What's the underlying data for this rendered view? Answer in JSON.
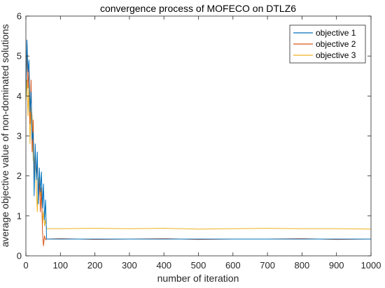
{
  "chart_data": {
    "type": "line",
    "title": "convergence process of MOFECO on DTLZ6",
    "xlabel": "number of iteration",
    "ylabel": "average objective value of non-dominated solutions",
    "xlim": [
      0,
      1000
    ],
    "ylim": [
      0,
      6
    ],
    "xticks": [
      0,
      100,
      200,
      300,
      400,
      500,
      600,
      700,
      800,
      900,
      1000
    ],
    "yticks": [
      0,
      1,
      2,
      3,
      4,
      5,
      6
    ],
    "grid": false,
    "legend_position": "top-right",
    "series": [
      {
        "name": "objective 1",
        "color": "#0072BD",
        "x": [
          0,
          3,
          6,
          9,
          12,
          15,
          18,
          21,
          24,
          27,
          30,
          33,
          36,
          39,
          42,
          45,
          48,
          51,
          54,
          57,
          60,
          100,
          200,
          300,
          400,
          500,
          600,
          700,
          800,
          900,
          1000
        ],
        "y": [
          4.0,
          5.4,
          4.6,
          4.9,
          3.6,
          4.1,
          2.9,
          3.1,
          1.5,
          2.8,
          1.9,
          2.6,
          1.3,
          2.2,
          1.6,
          2.1,
          1.2,
          1.8,
          0.9,
          1.4,
          0.42,
          0.42,
          0.42,
          0.42,
          0.42,
          0.42,
          0.42,
          0.42,
          0.42,
          0.42,
          0.42
        ]
      },
      {
        "name": "objective 2",
        "color": "#D95319",
        "x": [
          0,
          3,
          6,
          9,
          12,
          15,
          18,
          21,
          24,
          27,
          30,
          33,
          36,
          39,
          42,
          45,
          48,
          51,
          54,
          57,
          60,
          100,
          200,
          300,
          400,
          500,
          600,
          700,
          800,
          900,
          1000
        ],
        "y": [
          4.3,
          5.1,
          4.2,
          4.7,
          3.3,
          4.4,
          2.6,
          3.4,
          1.8,
          2.5,
          2.0,
          2.3,
          1.4,
          1.9,
          1.1,
          1.7,
          0.6,
          0.25,
          0.5,
          0.4,
          0.42,
          0.43,
          0.41,
          0.42,
          0.43,
          0.41,
          0.42,
          0.42,
          0.43,
          0.41,
          0.42
        ]
      },
      {
        "name": "objective 3",
        "color": "#EDB120",
        "x": [
          0,
          3,
          6,
          9,
          12,
          15,
          18,
          21,
          24,
          27,
          30,
          33,
          36,
          39,
          42,
          45,
          48,
          51,
          54,
          57,
          60,
          100,
          200,
          300,
          400,
          500,
          600,
          700,
          800,
          900,
          1000
        ],
        "y": [
          3.9,
          4.4,
          3.5,
          4.3,
          2.8,
          3.7,
          3.5,
          2.4,
          2.3,
          2.6,
          1.7,
          1.1,
          1.9,
          2.0,
          1.5,
          1.7,
          0.8,
          1.1,
          0.75,
          0.9,
          0.68,
          0.68,
          0.69,
          0.68,
          0.69,
          0.67,
          0.68,
          0.69,
          0.68,
          0.68,
          0.67
        ]
      }
    ]
  }
}
